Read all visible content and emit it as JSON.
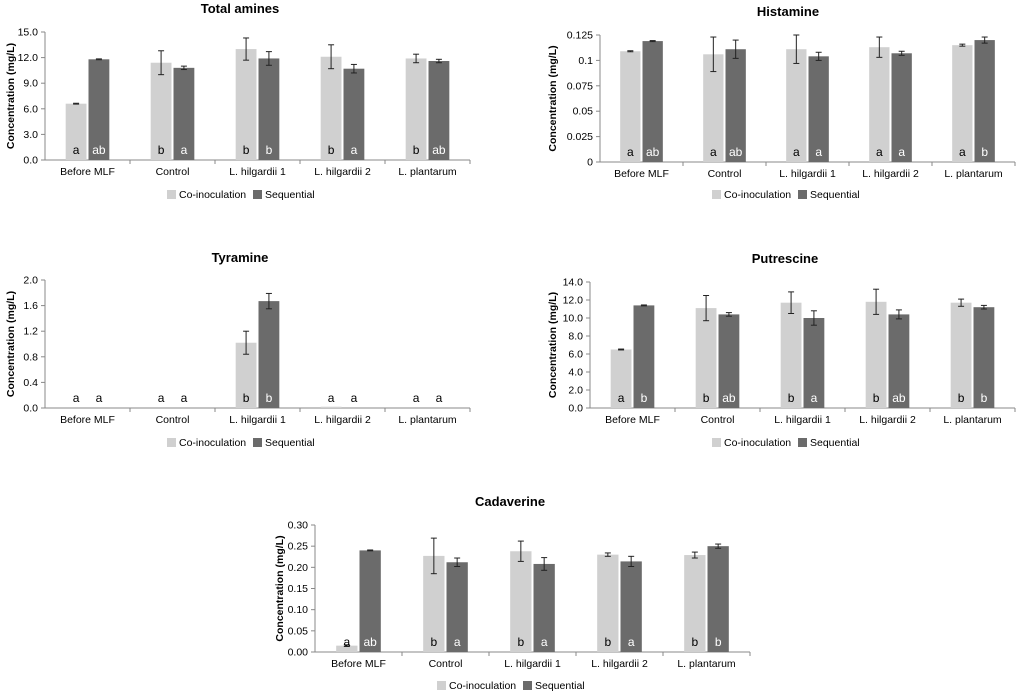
{
  "colors": {
    "co": "#d0d0d0",
    "seq": "#6b6b6b",
    "letter_on_dark": "#ffffff",
    "letter_on_light": "#000000"
  },
  "legend": {
    "co": "Co-inoculation",
    "seq": "Sequential"
  },
  "chart_data": [
    {
      "type": "bar",
      "title": "Total amines",
      "ylabel": "Concentration (mg/L)",
      "categories": [
        "Before MLF",
        "Control",
        "L. hilgardii 1",
        "L. hilgardii 2",
        "L. plantarum"
      ],
      "ylim": [
        0,
        15
      ],
      "yticks": [
        "0.0",
        "3.0",
        "6.0",
        "9.0",
        "12.0",
        "15.0"
      ],
      "series": [
        {
          "name": "Co-inoculation",
          "values": [
            6.6,
            11.4,
            13.0,
            12.1,
            11.9
          ],
          "errors": [
            0.05,
            1.4,
            1.3,
            1.4,
            0.5
          ],
          "letters": [
            "a",
            "b",
            "b",
            "b",
            "b"
          ]
        },
        {
          "name": "Sequential",
          "values": [
            11.8,
            10.8,
            11.9,
            10.7,
            11.6
          ],
          "errors": [
            0.05,
            0.2,
            0.8,
            0.5,
            0.2
          ],
          "letters": [
            "ab",
            "a",
            "b",
            "a",
            "ab"
          ]
        }
      ]
    },
    {
      "type": "bar",
      "title": "Histamine",
      "ylabel": "Concentration (mg/L)",
      "categories": [
        "Before MLF",
        "Control",
        "L. hilgardii 1",
        "L. hilgardii 2",
        "L. plantarum"
      ],
      "ylim": [
        0,
        0.125
      ],
      "yticks": [
        "0",
        "0.025",
        "0.05",
        "0.075",
        "0.1",
        "0.125"
      ],
      "series": [
        {
          "name": "Co-inoculation",
          "values": [
            0.109,
            0.106,
            0.111,
            0.113,
            0.115
          ],
          "errors": [
            0.0005,
            0.017,
            0.014,
            0.01,
            0.001
          ],
          "letters": [
            "a",
            "a",
            "a",
            "a",
            "a"
          ]
        },
        {
          "name": "Sequential",
          "values": [
            0.119,
            0.111,
            0.104,
            0.107,
            0.12
          ],
          "errors": [
            0.0005,
            0.009,
            0.004,
            0.002,
            0.003
          ],
          "letters": [
            "ab",
            "ab",
            "a",
            "a",
            "b"
          ]
        }
      ]
    },
    {
      "type": "bar",
      "title": "Tyramine",
      "ylabel": "Concentration (mg/L)",
      "categories": [
        "Before MLF",
        "Control",
        "L. hilgardii 1",
        "L. hilgardii 2",
        "L. plantarum"
      ],
      "ylim": [
        0,
        2.0
      ],
      "yticks": [
        "0.0",
        "0.4",
        "0.8",
        "1.2",
        "1.6",
        "2.0"
      ],
      "series": [
        {
          "name": "Co-inoculation",
          "values": [
            0,
            0,
            1.02,
            0.02,
            0
          ],
          "errors": [
            0,
            0,
            0.18,
            0,
            0
          ],
          "letters": [
            "a",
            "a",
            "b",
            "a",
            "a"
          ]
        },
        {
          "name": "Sequential",
          "values": [
            0,
            0,
            1.67,
            0,
            0
          ],
          "errors": [
            0,
            0,
            0.12,
            0,
            0
          ],
          "letters": [
            "a",
            "a",
            "b",
            "a",
            "a"
          ]
        }
      ]
    },
    {
      "type": "bar",
      "title": "Putrescine",
      "ylabel": "Concentration (mg/L)",
      "categories": [
        "Before MLF",
        "Control",
        "L. hilgardii 1",
        "L. hilgardii 2",
        "L. plantarum"
      ],
      "ylim": [
        0,
        14
      ],
      "yticks": [
        "0.0",
        "2.0",
        "4.0",
        "6.0",
        "8.0",
        "10.0",
        "12.0",
        "14.0"
      ],
      "series": [
        {
          "name": "Co-inoculation",
          "values": [
            6.5,
            11.1,
            11.7,
            11.8,
            11.7
          ],
          "errors": [
            0.05,
            1.4,
            1.2,
            1.4,
            0.4
          ],
          "letters": [
            "a",
            "b",
            "b",
            "b",
            "b"
          ]
        },
        {
          "name": "Sequential",
          "values": [
            11.4,
            10.4,
            10.0,
            10.4,
            11.2
          ],
          "errors": [
            0.05,
            0.2,
            0.8,
            0.5,
            0.2
          ],
          "letters": [
            "b",
            "ab",
            "a",
            "ab",
            "b"
          ]
        }
      ]
    },
    {
      "type": "bar",
      "title": "Cadaverine",
      "ylabel": "Concentration (mg/L)",
      "categories": [
        "Before MLF",
        "Control",
        "L. hilgardii 1",
        "L. hilgardii 2",
        "L. plantarum"
      ],
      "ylim": [
        0,
        0.3
      ],
      "yticks": [
        "0.00",
        "0.05",
        "0.10",
        "0.15",
        "0.20",
        "0.25",
        "0.30"
      ],
      "series": [
        {
          "name": "Co-inoculation",
          "values": [
            0.015,
            0.227,
            0.238,
            0.23,
            0.229
          ],
          "errors": [
            0.002,
            0.042,
            0.024,
            0.004,
            0.007
          ],
          "letters": [
            "a",
            "b",
            "b",
            "b",
            "b"
          ]
        },
        {
          "name": "Sequential",
          "values": [
            0.24,
            0.212,
            0.208,
            0.214,
            0.25
          ],
          "errors": [
            0.001,
            0.01,
            0.015,
            0.012,
            0.005
          ],
          "letters": [
            "ab",
            "a",
            "a",
            "a",
            "b"
          ]
        }
      ]
    }
  ]
}
